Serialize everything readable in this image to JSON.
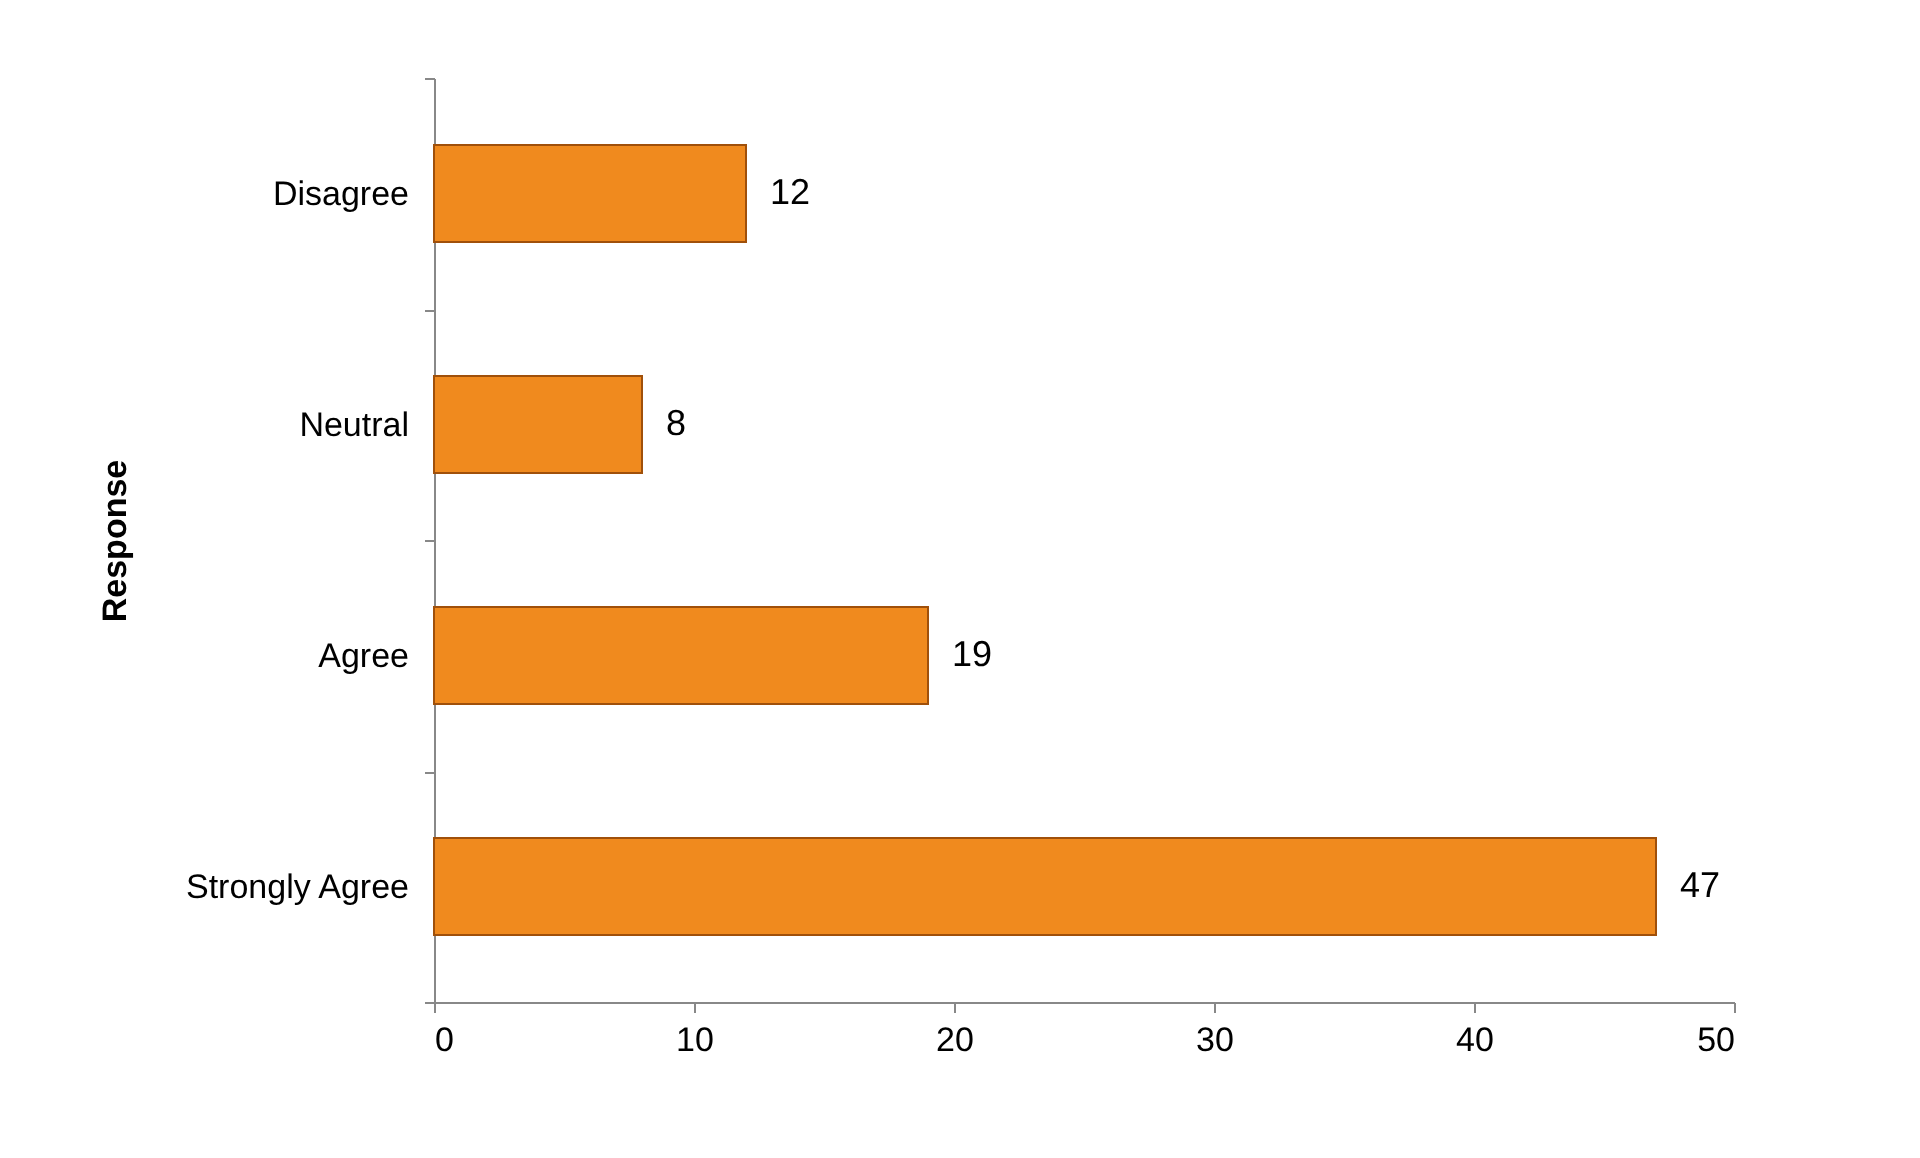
{
  "chart_data": {
    "type": "bar",
    "orientation": "horizontal",
    "ylabel": "Response",
    "categories": [
      "Disagree",
      "Neutral",
      "Agree",
      "Strongly Agree"
    ],
    "values": [
      12,
      8,
      19,
      47
    ],
    "color": "#f08a1e",
    "xlim": [
      0,
      50
    ],
    "xticks": [
      0,
      10,
      20,
      30,
      40,
      50
    ],
    "data_labels": true
  }
}
